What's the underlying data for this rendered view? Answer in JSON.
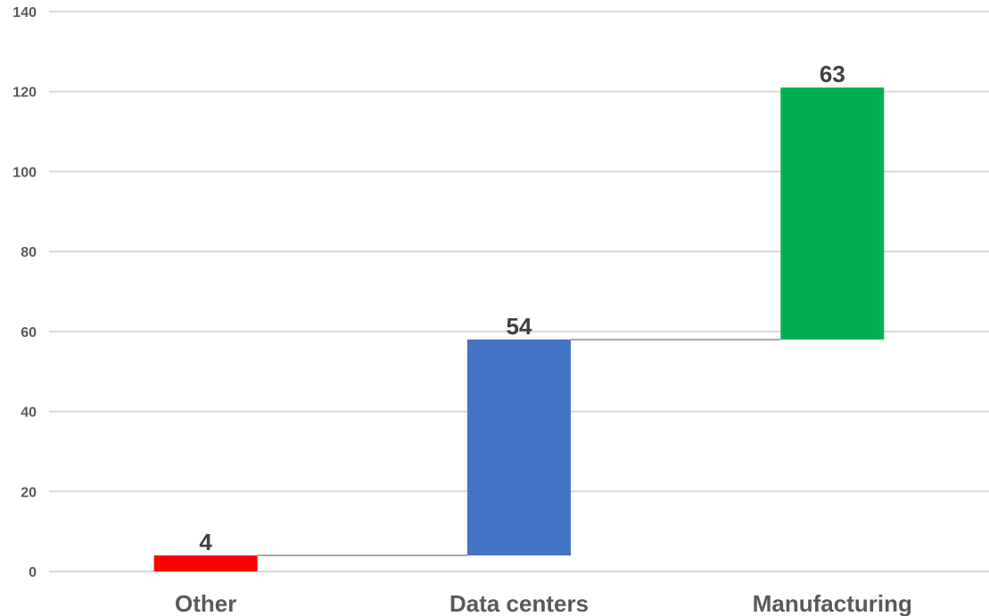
{
  "chart_data": {
    "type": "bar",
    "subtype": "waterfall",
    "title": "",
    "xlabel": "",
    "ylabel": "",
    "ylim": [
      0,
      140
    ],
    "yticks": [
      "0",
      "20",
      "40",
      "60",
      "80",
      "100",
      "120",
      "140"
    ],
    "grid": true,
    "legend": "none",
    "categories": [
      "Other",
      "Data centers",
      "Manufacturing"
    ],
    "values": [
      4,
      54,
      63
    ],
    "labels": [
      "4",
      "54",
      "63"
    ],
    "colors": [
      "#ff0000",
      "#4472c4",
      "#00b050"
    ],
    "connector_color": "#a6a6a6",
    "grid_color": "#d9d9d9"
  }
}
